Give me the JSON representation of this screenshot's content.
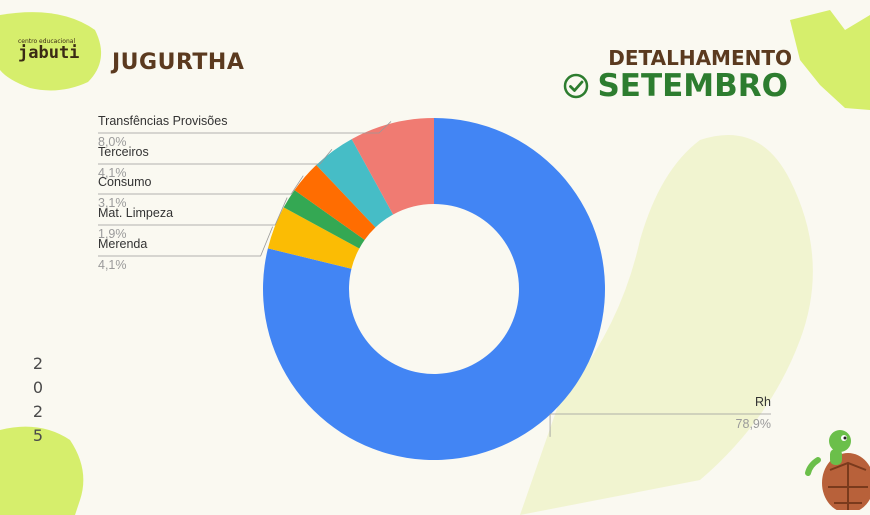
{
  "header": {
    "logo_small": "centro educacional",
    "logo_name": "jabuti",
    "school": "JUGURTHA",
    "detail": "DETALHAMENTO",
    "month": "SETEMBRO",
    "year_digits": [
      "2",
      "0",
      "2",
      "5"
    ]
  },
  "colors": {
    "brown": "#5b3a1f",
    "green": "#2d7d2f",
    "accent_green": "#d6ee6c"
  },
  "icons": {
    "check": "check-circle-icon",
    "turtle": "turtle-mascot-icon"
  },
  "chart_data": {
    "type": "pie",
    "donut": true,
    "categories": [
      "Rh",
      "Merenda",
      "Mat. Limpeza",
      "Consumo",
      "Terceiros",
      "Transfências Provisões"
    ],
    "values": [
      78.9,
      4.1,
      1.9,
      3.1,
      4.1,
      8.0
    ],
    "value_labels": [
      "78,9%",
      "4,1%",
      "1,9%",
      "3,1%",
      "4,1%",
      "8,0%"
    ],
    "colors": [
      "#4285f4",
      "#fbbc04",
      "#34a853",
      "#ff6d01",
      "#46bdc6",
      "#f07b72"
    ],
    "legend": "leader-line labels"
  }
}
